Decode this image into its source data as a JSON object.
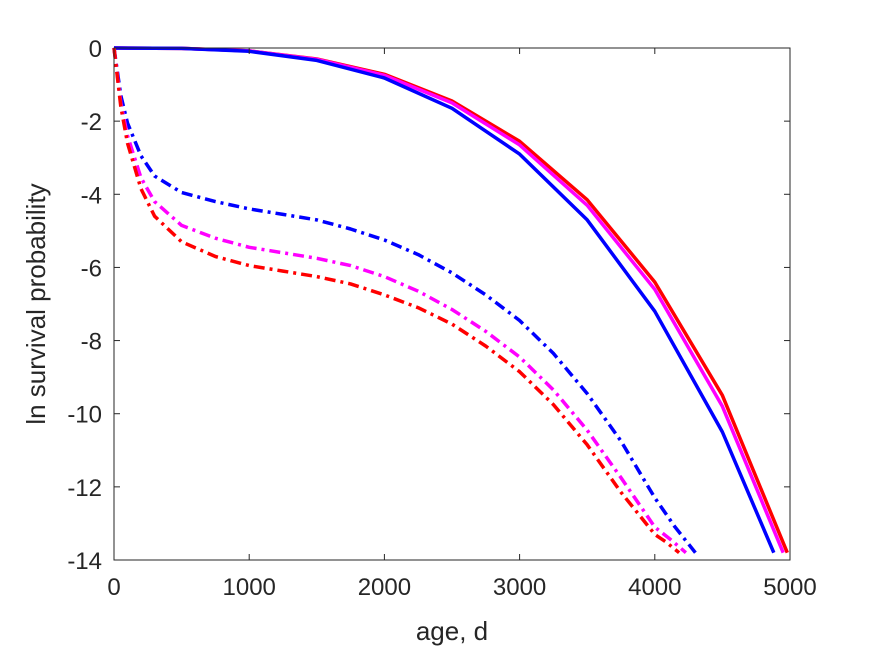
{
  "chart_data": {
    "type": "line",
    "xlabel": "age, d",
    "ylabel": "ln survival probability",
    "xlim": [
      0,
      5000
    ],
    "ylim": [
      -14,
      0
    ],
    "xticks": [
      0,
      1000,
      2000,
      3000,
      4000,
      5000
    ],
    "yticks": [
      0,
      -2,
      -4,
      -6,
      -8,
      -10,
      -12,
      -14
    ],
    "grid": false,
    "box": true,
    "series": [
      {
        "color": "#ff0000",
        "style": "solid",
        "x": [
          0,
          500,
          1000,
          1500,
          2000,
          2500,
          3000,
          3500,
          4000,
          4500,
          4980
        ],
        "y": [
          0,
          -0.01,
          -0.08,
          -0.3,
          -0.72,
          -1.45,
          -2.55,
          -4.15,
          -6.4,
          -9.5,
          -13.8
        ]
      },
      {
        "color": "#ff00ff",
        "style": "solid",
        "x": [
          0,
          500,
          1000,
          1500,
          2000,
          2500,
          3000,
          3500,
          4000,
          4500,
          4950
        ],
        "y": [
          0,
          -0.01,
          -0.08,
          -0.31,
          -0.75,
          -1.5,
          -2.65,
          -4.3,
          -6.6,
          -9.8,
          -13.8
        ]
      },
      {
        "color": "#0000ff",
        "style": "solid",
        "x": [
          0,
          500,
          1000,
          1500,
          2000,
          2500,
          3000,
          3500,
          4000,
          4500,
          4880
        ],
        "y": [
          0,
          -0.01,
          -0.09,
          -0.34,
          -0.82,
          -1.65,
          -2.9,
          -4.7,
          -7.2,
          -10.5,
          -13.8
        ]
      },
      {
        "color": "#0000ff",
        "style": "dashdot",
        "x": [
          0,
          50,
          100,
          200,
          300,
          500,
          750,
          1000,
          1250,
          1500,
          1750,
          2000,
          2250,
          2500,
          2750,
          3000,
          3250,
          3500,
          3750,
          4000,
          4150,
          4300
        ],
        "y": [
          0,
          -1.3,
          -2.05,
          -2.95,
          -3.5,
          -3.95,
          -4.2,
          -4.4,
          -4.55,
          -4.7,
          -4.95,
          -5.25,
          -5.65,
          -6.15,
          -6.75,
          -7.45,
          -8.35,
          -9.45,
          -10.75,
          -12.3,
          -13.1,
          -13.8
        ]
      },
      {
        "color": "#ff00ff",
        "style": "dashdot",
        "x": [
          0,
          50,
          100,
          200,
          300,
          500,
          750,
          1000,
          1250,
          1500,
          1750,
          2000,
          2250,
          2500,
          2750,
          3000,
          3250,
          3500,
          3750,
          4000,
          4120,
          4230
        ],
        "y": [
          0,
          -1.5,
          -2.4,
          -3.55,
          -4.2,
          -4.85,
          -5.2,
          -5.45,
          -5.6,
          -5.75,
          -5.95,
          -6.25,
          -6.65,
          -7.15,
          -7.75,
          -8.45,
          -9.35,
          -10.45,
          -11.75,
          -13.1,
          -13.45,
          -13.8
        ]
      },
      {
        "color": "#ff0000",
        "style": "dashdot",
        "x": [
          0,
          50,
          100,
          200,
          300,
          500,
          750,
          1000,
          1250,
          1500,
          1750,
          2000,
          2250,
          2500,
          2750,
          3000,
          3250,
          3500,
          3750,
          4000,
          4080,
          4180
        ],
        "y": [
          0,
          -1.6,
          -2.6,
          -3.85,
          -4.6,
          -5.3,
          -5.7,
          -5.95,
          -6.1,
          -6.25,
          -6.45,
          -6.75,
          -7.1,
          -7.55,
          -8.15,
          -8.85,
          -9.75,
          -10.85,
          -12.15,
          -13.3,
          -13.5,
          -13.8
        ]
      }
    ]
  }
}
